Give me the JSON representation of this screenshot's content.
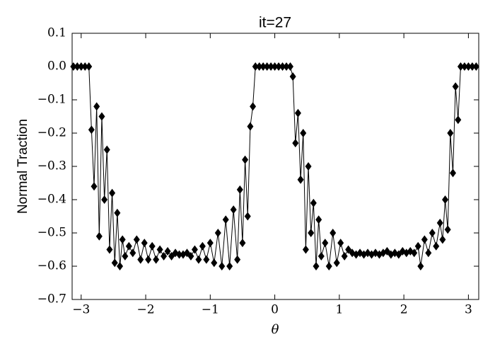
{
  "chart_data": {
    "type": "line",
    "title": "it=27",
    "x_label": "θ",
    "y_label": "Normal Traction",
    "color": "#000000",
    "marker": "diamond",
    "xlim": [
      -3.14,
      3.16
    ],
    "ylim": [
      -0.7,
      0.1
    ],
    "xticks": [
      {
        "value": -3,
        "label": "−3"
      },
      {
        "value": -2,
        "label": "−2"
      },
      {
        "value": -1,
        "label": "−1"
      },
      0,
      1,
      2,
      3
    ],
    "yticks": [
      {
        "value": -0.7,
        "label": "−0.7"
      },
      {
        "value": -0.6,
        "label": "−0.6"
      },
      {
        "value": -0.5,
        "label": "−0.5"
      },
      {
        "value": -0.4,
        "label": "−0.4"
      },
      {
        "value": -0.3,
        "label": "−0.3"
      },
      {
        "value": -0.2,
        "label": "−0.2"
      },
      {
        "value": -0.1,
        "label": "−0.1"
      },
      {
        "value": 0,
        "label": "0.0"
      },
      0.1
    ],
    "x": [
      -3.12,
      -3.06,
      -3.0,
      -2.94,
      -2.88,
      -2.84,
      -2.8,
      -2.76,
      -2.72,
      -2.68,
      -2.64,
      -2.6,
      -2.56,
      -2.52,
      -2.48,
      -2.44,
      -2.4,
      -2.36,
      -2.32,
      -2.26,
      -2.2,
      -2.14,
      -2.08,
      -2.02,
      -1.96,
      -1.9,
      -1.84,
      -1.78,
      -1.72,
      -1.66,
      -1.6,
      -1.54,
      -1.48,
      -1.42,
      -1.36,
      -1.3,
      -1.24,
      -1.18,
      -1.12,
      -1.06,
      -1.0,
      -0.94,
      -0.88,
      -0.82,
      -0.76,
      -0.7,
      -0.64,
      -0.58,
      -0.54,
      -0.5,
      -0.46,
      -0.42,
      -0.38,
      -0.34,
      -0.3,
      -0.24,
      -0.18,
      -0.12,
      -0.06,
      0.0,
      0.06,
      0.12,
      0.18,
      0.24,
      0.28,
      0.32,
      0.36,
      0.4,
      0.44,
      0.48,
      0.52,
      0.56,
      0.6,
      0.64,
      0.68,
      0.72,
      0.78,
      0.84,
      0.9,
      0.96,
      1.02,
      1.08,
      1.14,
      1.2,
      1.26,
      1.32,
      1.38,
      1.44,
      1.5,
      1.56,
      1.62,
      1.68,
      1.74,
      1.8,
      1.86,
      1.92,
      1.98,
      2.04,
      2.1,
      2.16,
      2.22,
      2.26,
      2.32,
      2.38,
      2.44,
      2.5,
      2.56,
      2.6,
      2.64,
      2.68,
      2.72,
      2.76,
      2.8,
      2.84,
      2.88,
      2.94,
      3.0,
      3.06,
      3.12
    ],
    "values": [
      0,
      0,
      0,
      0,
      0,
      -0.19,
      -0.36,
      -0.12,
      -0.51,
      -0.15,
      -0.4,
      -0.25,
      -0.55,
      -0.38,
      -0.59,
      -0.44,
      -0.6,
      -0.52,
      -0.57,
      -0.54,
      -0.56,
      -0.52,
      -0.58,
      -0.53,
      -0.58,
      -0.54,
      -0.58,
      -0.55,
      -0.57,
      -0.555,
      -0.57,
      -0.56,
      -0.565,
      -0.565,
      -0.56,
      -0.57,
      -0.55,
      -0.58,
      -0.54,
      -0.58,
      -0.53,
      -0.59,
      -0.5,
      -0.6,
      -0.46,
      -0.6,
      -0.43,
      -0.58,
      -0.37,
      -0.53,
      -0.28,
      -0.45,
      -0.18,
      -0.12,
      0,
      0,
      0,
      0,
      0,
      0,
      0,
      0,
      0,
      0,
      -0.03,
      -0.23,
      -0.14,
      -0.34,
      -0.2,
      -0.55,
      -0.3,
      -0.5,
      -0.41,
      -0.6,
      -0.46,
      -0.57,
      -0.53,
      -0.6,
      -0.5,
      -0.59,
      -0.53,
      -0.57,
      -0.55,
      -0.56,
      -0.565,
      -0.56,
      -0.565,
      -0.56,
      -0.565,
      -0.56,
      -0.565,
      -0.56,
      -0.555,
      -0.565,
      -0.56,
      -0.565,
      -0.555,
      -0.56,
      -0.555,
      -0.56,
      -0.54,
      -0.6,
      -0.52,
      -0.56,
      -0.5,
      -0.54,
      -0.47,
      -0.52,
      -0.4,
      -0.49,
      -0.2,
      -0.32,
      -0.06,
      -0.16,
      0,
      0,
      0,
      0,
      0
    ]
  }
}
